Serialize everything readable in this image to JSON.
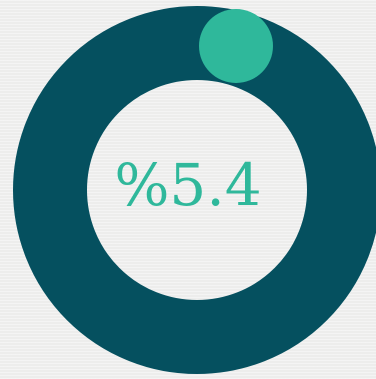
{
  "chart_data": {
    "type": "pie",
    "variant": "donut",
    "label": "%5.4",
    "slices": [
      {
        "value": 5.4,
        "color": "#2fb89b"
      },
      {
        "value": 94.6,
        "color": "#05505f"
      }
    ],
    "center_color": "#f1f1f0"
  }
}
